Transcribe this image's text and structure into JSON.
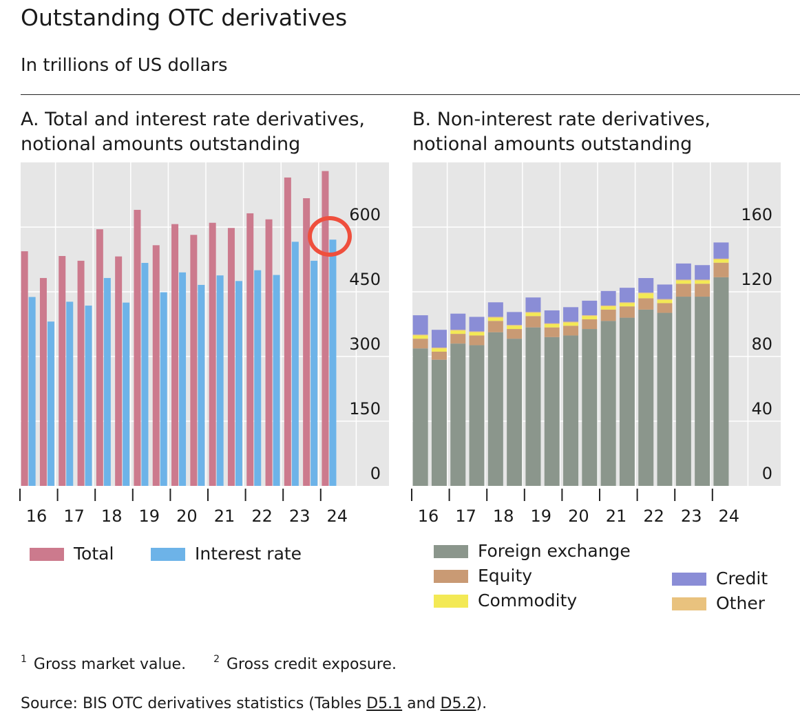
{
  "header": {
    "title": "Outstanding OTC derivatives",
    "subtitle": "In trillions of US dollars"
  },
  "chart_data": [
    {
      "type": "bar",
      "title": "A. Total and interest rate derivatives,\nnotional amounts outstanding",
      "categories": [
        "H1 2016",
        "H2 2016",
        "H1 2017",
        "H2 2017",
        "H1 2018",
        "H2 2018",
        "H1 2019",
        "H2 2019",
        "H1 2020",
        "H2 2020",
        "H1 2021",
        "H2 2021",
        "H1 2022",
        "H2 2022",
        "H1 2023",
        "H2 2023",
        "H1 2024"
      ],
      "x_tick_labels": [
        "16",
        "17",
        "18",
        "19",
        "20",
        "21",
        "22",
        "23",
        "24"
      ],
      "series": [
        {
          "name": "Total",
          "color": "#cc7a8d",
          "values": [
            544,
            482,
            533,
            522,
            595,
            532,
            640,
            558,
            607,
            582,
            610,
            598,
            632,
            618,
            715,
            667,
            730
          ]
        },
        {
          "name": "Interest rate",
          "color": "#6db3e8",
          "values": [
            438,
            381,
            427,
            418,
            482,
            425,
            517,
            449,
            495,
            466,
            488,
            475,
            500,
            489,
            566,
            522,
            571
          ]
        }
      ],
      "ylim": [
        0,
        750
      ],
      "yticks": [
        0,
        150,
        300,
        450,
        600
      ],
      "ytick_labels": [
        "0",
        "150",
        "300",
        "450",
        "600"
      ],
      "grid": true
    },
    {
      "type": "bar",
      "stacked": true,
      "title": "B. Non-interest rate derivatives,\nnotional amounts outstanding",
      "categories": [
        "H1 2016",
        "H2 2016",
        "H1 2017",
        "H2 2017",
        "H1 2018",
        "H2 2018",
        "H1 2019",
        "H2 2019",
        "H1 2020",
        "H2 2020",
        "H1 2021",
        "H2 2021",
        "H1 2022",
        "H2 2022",
        "H1 2023",
        "H2 2023",
        "H1 2024"
      ],
      "x_tick_labels": [
        "16",
        "17",
        "18",
        "19",
        "20",
        "21",
        "22",
        "23",
        "24"
      ],
      "series": [
        {
          "name": "Foreign exchange",
          "color": "#8b968c",
          "values": [
            85,
            78,
            88,
            87,
            95,
            91,
            98,
            92,
            93,
            97,
            102,
            104,
            109,
            107,
            117,
            117,
            129
          ]
        },
        {
          "name": "Equity",
          "color": "#c99a74",
          "values": [
            6,
            5,
            6,
            6,
            7,
            6,
            7,
            6,
            6,
            6,
            7,
            7,
            7,
            6,
            8,
            8,
            9
          ]
        },
        {
          "name": "Commodity",
          "color": "#f3e955",
          "values": [
            2,
            2,
            2,
            2,
            2,
            2,
            2,
            2,
            2,
            2,
            2,
            2,
            3,
            2,
            2,
            2,
            2
          ]
        },
        {
          "name": "Other",
          "color": "#e9c27e",
          "values": [
            0.5,
            0.5,
            0.5,
            0.5,
            0.5,
            0.5,
            0.5,
            0.5,
            0.5,
            0.5,
            0.5,
            0.5,
            0.5,
            0.5,
            0.5,
            0.5,
            0.5
          ]
        },
        {
          "name": "Credit",
          "color": "#8a8dd6",
          "values": [
            12,
            11,
            10,
            9,
            9,
            8,
            9,
            8,
            9,
            9,
            9,
            9,
            9,
            9,
            10,
            9,
            10
          ]
        }
      ],
      "ylim": [
        0,
        200
      ],
      "yticks": [
        0,
        40,
        80,
        120,
        160
      ],
      "ytick_labels": [
        "0",
        "40",
        "80",
        "120",
        "160"
      ],
      "grid": true
    }
  ],
  "legend_a": [
    {
      "label": "Total",
      "color": "#cc7a8d"
    },
    {
      "label": "Interest rate",
      "color": "#6db3e8"
    }
  ],
  "legend_b": [
    {
      "label": "Foreign exchange",
      "color": "#8b968c"
    },
    {
      "label": "Equity",
      "color": "#c99a74"
    },
    {
      "label": "Commodity",
      "color": "#f3e955"
    },
    {
      "label": "Credit",
      "color": "#8a8dd6"
    },
    {
      "label": "Other",
      "color": "#e9c27e"
    }
  ],
  "notes": {
    "n1_marker": "1",
    "n1_text": "Gross market value.",
    "n2_marker": "2",
    "n2_text": "Gross credit exposure."
  },
  "source": {
    "prefix": "Source: BIS OTC derivatives statistics (Tables ",
    "link1": "D5.1",
    "middle": " and ",
    "link2": "D5.2",
    "suffix": ")."
  }
}
